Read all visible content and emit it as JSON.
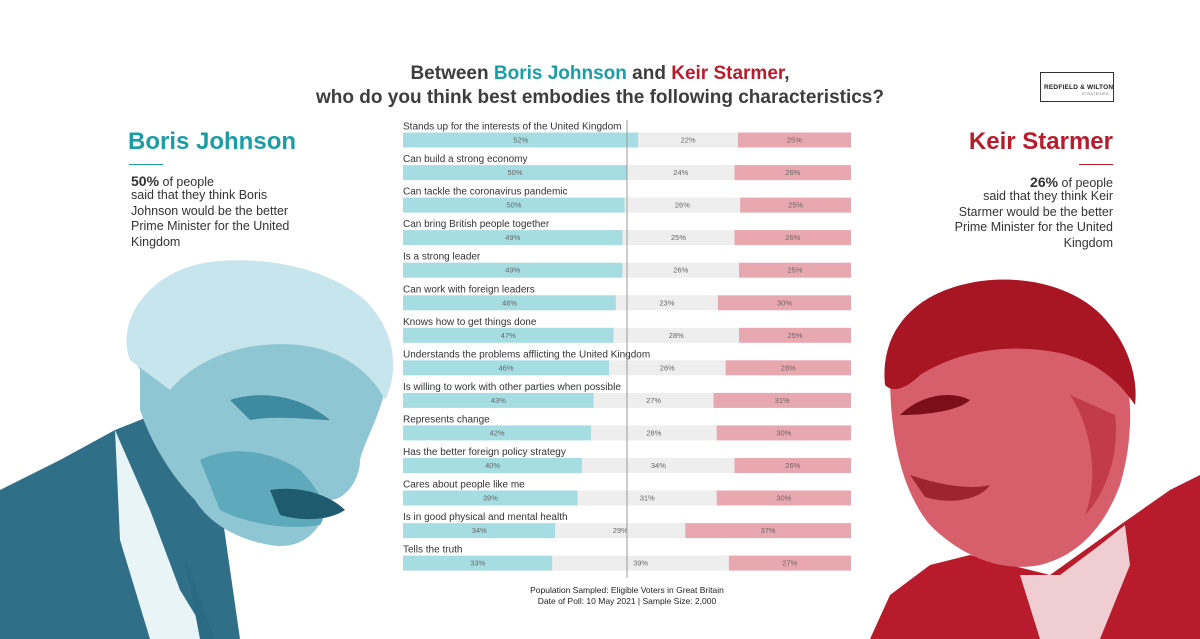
{
  "title": {
    "pre": "Between ",
    "boris": "Boris Johnson",
    "mid": " and ",
    "keir": "Keir Starmer",
    "post": ",",
    "line2": "who do you think best embodies the following characteristics?"
  },
  "logo": {
    "text": "REDFIELD & WILTON",
    "sub": "STRATEGIES"
  },
  "boris": {
    "name": "Boris Johnson",
    "pct": "50%",
    "desc_rest": " of people",
    "desc": "said that they think Boris Johnson would be the better Prime Minister for the United Kingdom",
    "color": "#1a9ea6"
  },
  "keir": {
    "name": "Keir Starmer",
    "pct": "26%",
    "desc_rest": " of people",
    "desc": "said that they think Keir Starmer would be the better Prime Minister for the United Kingdom",
    "color": "#b81c2c"
  },
  "chart_data": {
    "type": "bar",
    "stacked": true,
    "orientation": "horizontal",
    "categories": [
      "Stands up for the interests of the United Kingdom",
      "Can build a strong economy",
      "Can tackle the coronavirus pandemic",
      "Can bring British people together",
      "Is a strong leader",
      "Can work with foreign leaders",
      "Knows how to get things done",
      "Understands the problems afflicting the United Kingdom",
      "Is willing to work with other parties when possible",
      "Represents change",
      "Has the better foreign policy strategy",
      "Cares about people like me",
      "Is in good physical and mental health",
      "Tells the truth"
    ],
    "series": [
      {
        "values": [
          52,
          50,
          50,
          49,
          49,
          48,
          47,
          46,
          43,
          42,
          40,
          39,
          34,
          33
        ],
        "color": "#a6dde3"
      },
      {
        "values": [
          22,
          24,
          26,
          25,
          26,
          23,
          28,
          26,
          27,
          28,
          34,
          31,
          29,
          39
        ],
        "color": "#eeeeee"
      },
      {
        "values": [
          25,
          26,
          25,
          26,
          25,
          30,
          25,
          28,
          31,
          30,
          26,
          30,
          37,
          27
        ],
        "color": "#e8a8b0"
      }
    ],
    "labels": [
      [
        "52%",
        "22%",
        "25%"
      ],
      [
        "50%",
        "24%",
        "26%"
      ],
      [
        "50%",
        "26%",
        "25%"
      ],
      [
        "49%",
        "25%",
        "26%"
      ],
      [
        "49%",
        "26%",
        "25%"
      ],
      [
        "48%",
        "23%",
        "30%"
      ],
      [
        "47%",
        "28%",
        "25%"
      ],
      [
        "46%",
        "26%",
        "28%"
      ],
      [
        "43%",
        "27%",
        "31%"
      ],
      [
        "42%",
        "28%",
        "30%"
      ],
      [
        "40%",
        "34%",
        "26%"
      ],
      [
        "39%",
        "31%",
        "30%"
      ],
      [
        "34%",
        "29%",
        "37%"
      ],
      [
        "33%",
        "39%",
        "27%"
      ]
    ],
    "reference_line": 50,
    "xlim": [
      0,
      100
    ]
  },
  "footer": {
    "line1": "Population Sampled: Eligible Voters in Great Britain",
    "line2": "Date of Poll: 10 May 2021  |  Sample Size: 2,000"
  }
}
